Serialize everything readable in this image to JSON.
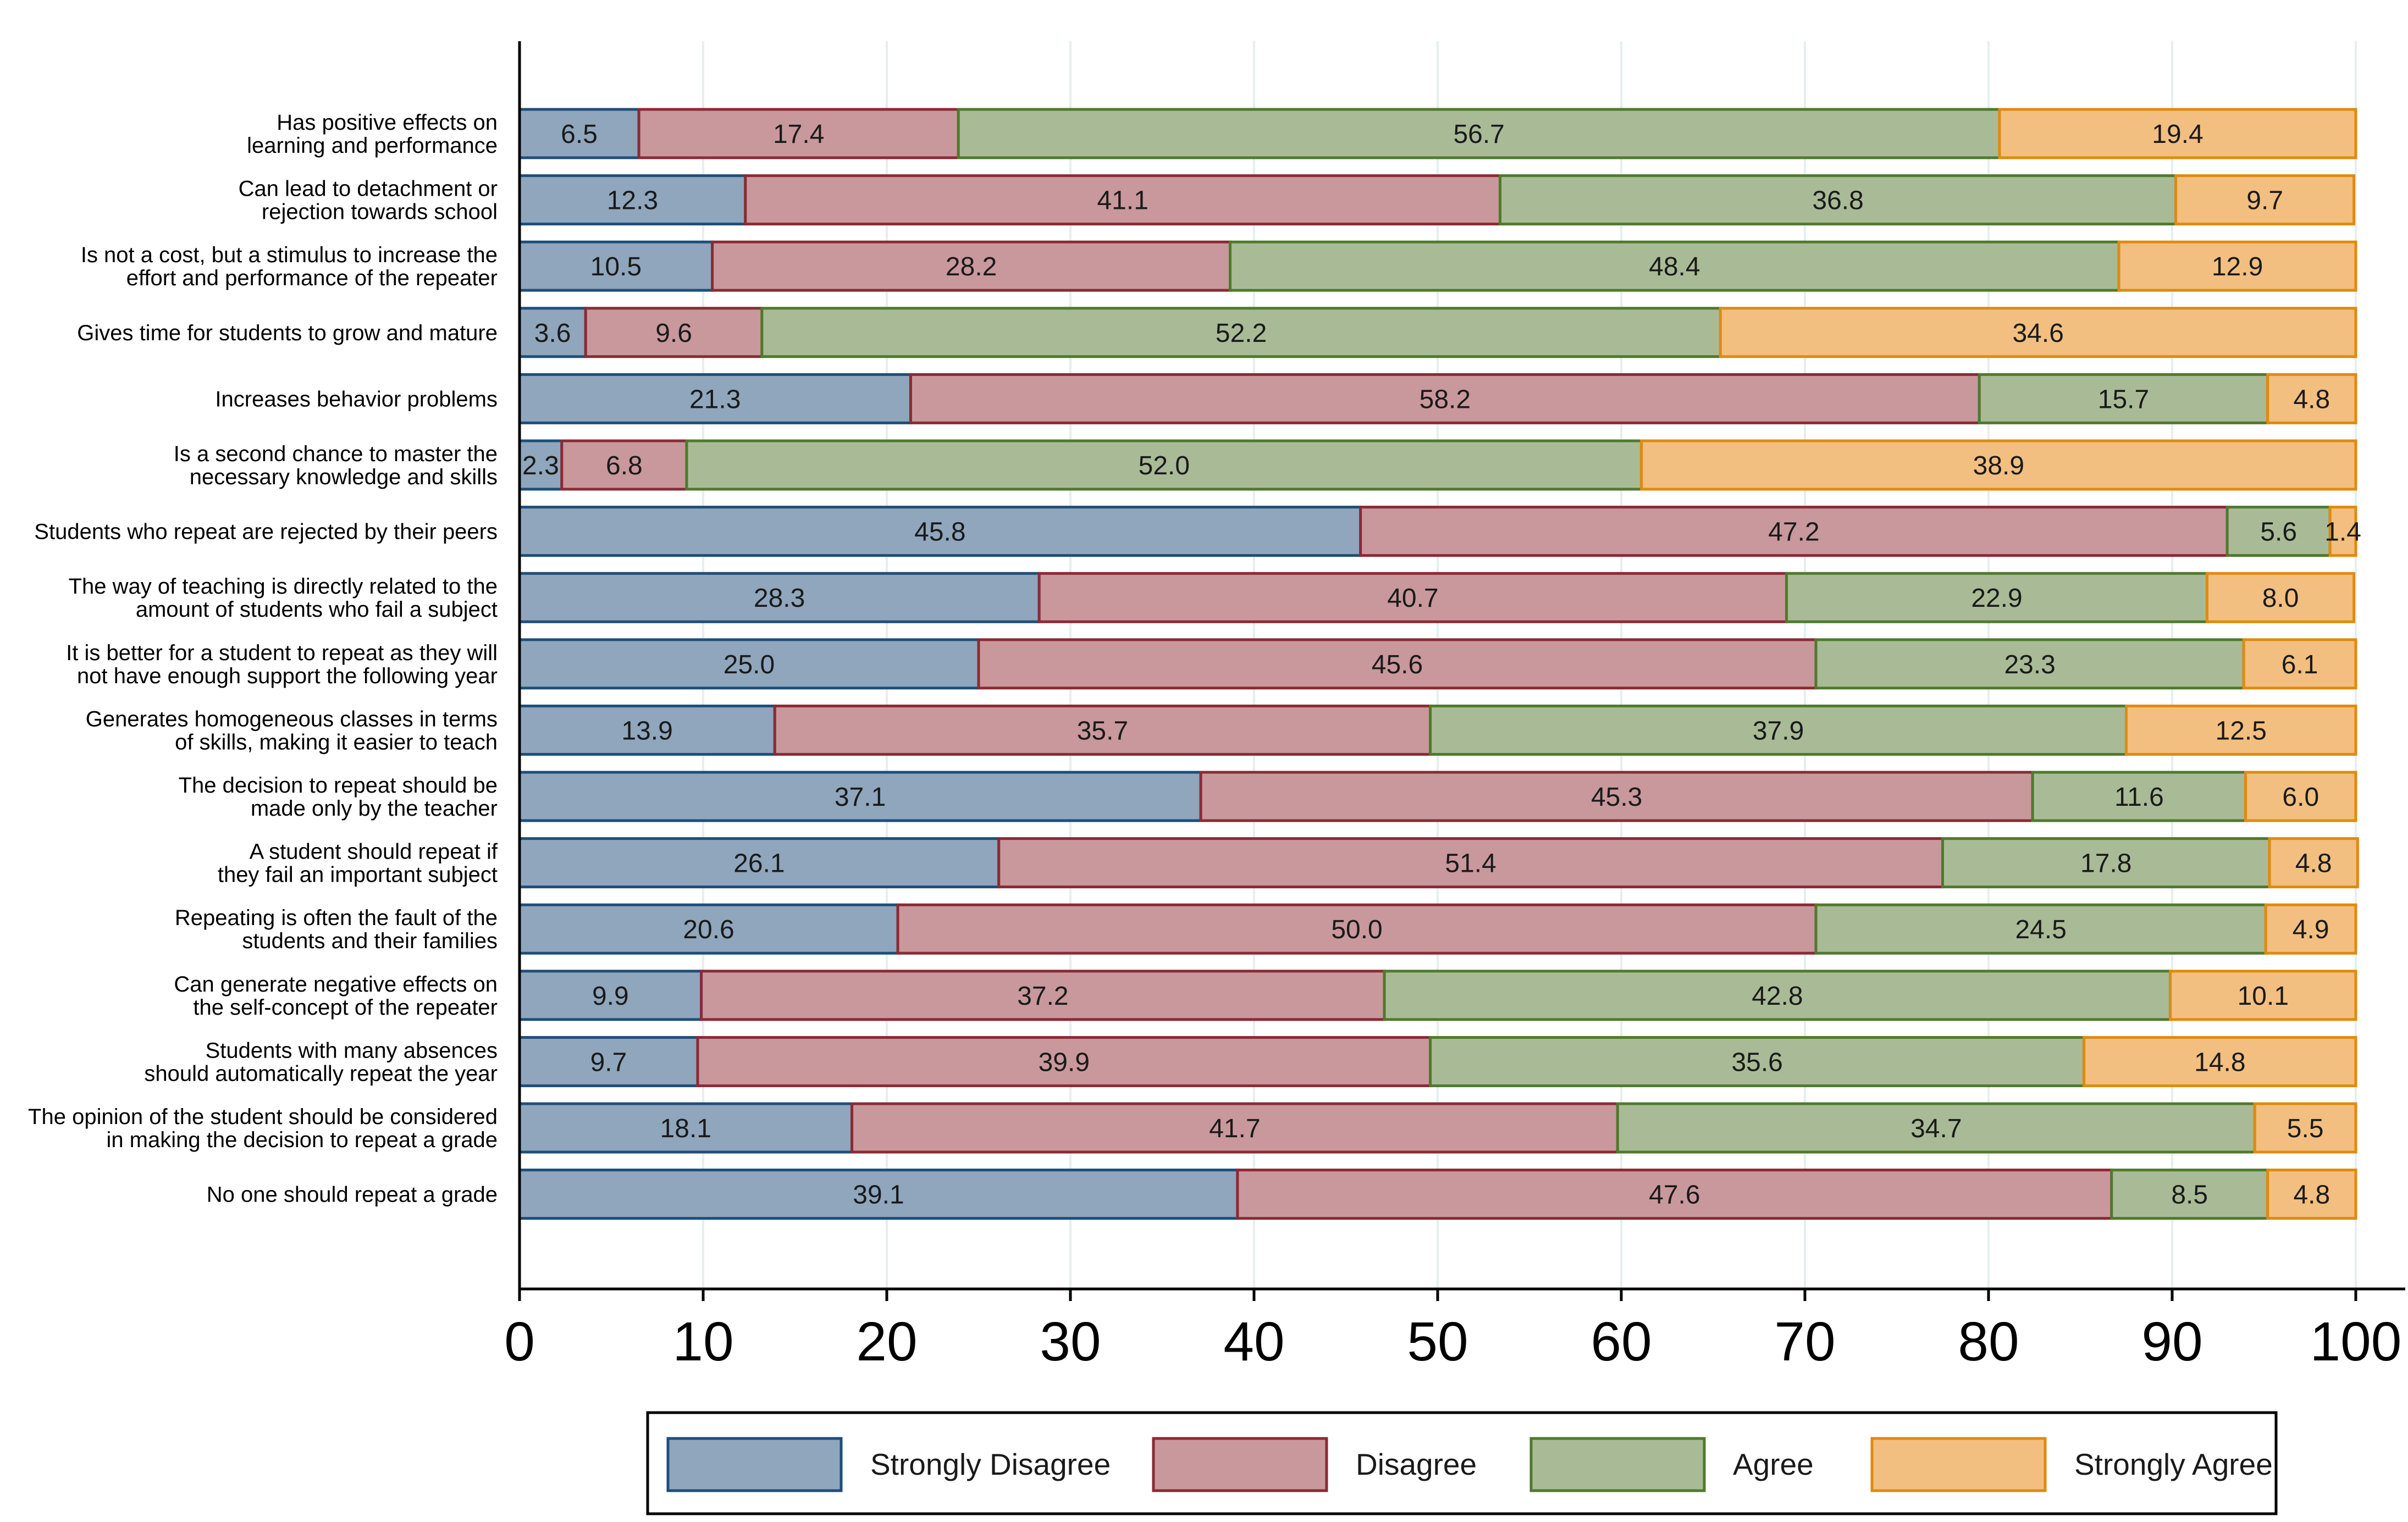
{
  "chart_data": {
    "type": "bar",
    "orientation": "horizontal",
    "stacked": true,
    "title": "",
    "xlabel": "",
    "ylabel": "",
    "xlim": [
      0,
      100
    ],
    "x_ticks": [
      "0",
      "10",
      "20",
      "30",
      "40",
      "50",
      "60",
      "70",
      "80",
      "90",
      "100"
    ],
    "grid": true,
    "legend_position": "bottom",
    "categories": [
      [
        "Has positive effects on",
        "learning and performance"
      ],
      [
        "Can lead to detachment or",
        "rejection towards school"
      ],
      [
        "Is not a cost, but a stimulus to increase the",
        "effort and performance of the repeater"
      ],
      [
        "Gives time for students to grow and mature"
      ],
      [
        "Increases behavior problems"
      ],
      [
        "Is a second chance to master the",
        "necessary knowledge and skills"
      ],
      [
        "Students who repeat are rejected by their peers"
      ],
      [
        "The way of teaching is directly related to the",
        "amount of students who fail a subject"
      ],
      [
        "It is better for a student to repeat as they will",
        "not have enough support the following year"
      ],
      [
        "Generates homogeneous classes in terms",
        "of skills, making it easier to teach"
      ],
      [
        "The decision to repeat should be",
        "made only by the teacher"
      ],
      [
        "A student should repeat if",
        "they fail an important subject"
      ],
      [
        "Repeating is often the fault of the",
        "students and their families"
      ],
      [
        "Can generate negative effects on",
        "the self-concept of the repeater"
      ],
      [
        "Students with many absences",
        "should automatically repeat the year"
      ],
      [
        "The opinion of the student should be considered",
        "in making the decision to repeat a grade"
      ],
      [
        "No one should repeat a grade"
      ]
    ],
    "series": [
      {
        "name": "Strongly Disagree",
        "fill": "#8fa6bd",
        "stroke": "#1f4e79",
        "values": [
          6.5,
          12.3,
          10.5,
          3.6,
          21.3,
          2.3,
          45.8,
          28.3,
          25.0,
          13.9,
          37.1,
          26.1,
          20.6,
          9.9,
          9.7,
          18.1,
          39.1
        ],
        "labels": [
          "6.5",
          "12.3",
          "10.5",
          "3.6",
          "21.3",
          "2.3",
          "45.8",
          "28.3",
          "25.0",
          "13.9",
          "37.1",
          "26.1",
          "20.6",
          "9.9",
          "9.7",
          "18.1",
          "39.1"
        ]
      },
      {
        "name": "Disagree",
        "fill": "#c9989c",
        "stroke": "#8b2a35",
        "values": [
          17.4,
          41.1,
          28.2,
          9.6,
          58.2,
          6.8,
          47.2,
          40.7,
          45.6,
          35.7,
          45.3,
          51.4,
          50.0,
          37.2,
          39.9,
          41.7,
          47.6
        ],
        "labels": [
          "17.4",
          "41.1",
          "28.2",
          "9.6",
          "58.2",
          "6.8",
          "47.2",
          "40.7",
          "45.6",
          "35.7",
          "45.3",
          "51.4",
          "50.0",
          "37.2",
          "39.9",
          "41.7",
          "47.6"
        ]
      },
      {
        "name": "Agree",
        "fill": "#a9bb96",
        "stroke": "#4f7a2c",
        "values": [
          56.7,
          36.8,
          48.4,
          52.2,
          15.7,
          52.0,
          5.6,
          22.9,
          23.3,
          37.9,
          11.6,
          17.8,
          24.5,
          42.8,
          35.6,
          34.7,
          8.5
        ],
        "labels": [
          "56.7",
          "36.8",
          "48.4",
          "52.2",
          "15.7",
          "52.0",
          "5.6",
          "22.9",
          "23.3",
          "37.9",
          "11.6",
          "17.8",
          "24.5",
          "42.8",
          "35.6",
          "34.7",
          "8.5"
        ]
      },
      {
        "name": "Strongly Agree",
        "fill": "#f2bf80",
        "stroke": "#e08a10",
        "values": [
          19.4,
          9.7,
          12.9,
          34.6,
          4.8,
          38.9,
          1.4,
          8.0,
          6.1,
          12.5,
          6.0,
          4.8,
          4.9,
          10.1,
          14.8,
          5.5,
          4.8
        ],
        "labels": [
          "19.4",
          "9.7",
          "12.9",
          "34.6",
          "4.8",
          "38.9",
          "1.4",
          "8.0",
          "6.1",
          "12.5",
          "6.0",
          "4.8",
          "4.9",
          "10.1",
          "14.8",
          "5.5",
          "4.8"
        ]
      }
    ]
  }
}
